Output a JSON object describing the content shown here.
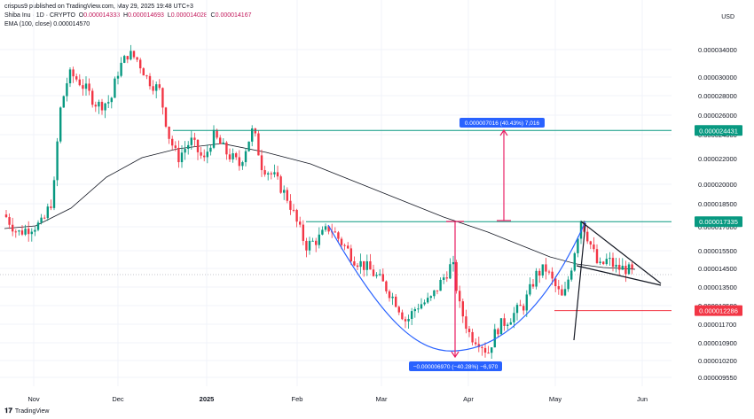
{
  "header": {
    "published": "crispus9 published on TradingView.com, May 29, 2025 19:48 UTC+3",
    "symbol": "Shiba Inu · 1D · CRYPTO",
    "o_label": "O",
    "o_value": "0.000014333",
    "h_label": "H",
    "h_value": "0.000014693",
    "l_label": "L",
    "l_value": "0.000014028",
    "c_label": "C",
    "c_value": "0.000014167",
    "ema_label": "EMA (100, close)",
    "ema_value": "0.000014570"
  },
  "currency": "USD",
  "footer": {
    "logo_text": "TradingView"
  },
  "chart_data": {
    "type": "candlestick",
    "x_ticks": [
      "Nov",
      "Dec",
      "2025",
      "Feb",
      "Mar",
      "Apr",
      "May",
      "Jun"
    ],
    "y_ticks": [
      "0.000034000",
      "0.000030000",
      "0.000028000",
      "0.000026000",
      "0.000024000",
      "0.000022000",
      "0.000020000",
      "0.000018500",
      "0.000017000",
      "0.000015500",
      "0.000014500",
      "0.000013500",
      "0.000012500",
      "0.000011700",
      "0.000010900",
      "0.000010200",
      "0.000009550"
    ],
    "price_badges": [
      {
        "label": "0.000024431",
        "value": 2.4431e-05,
        "color": "#089981"
      },
      {
        "label": "0.000017335",
        "value": 1.7335e-05,
        "color": "#089981"
      },
      {
        "label": "0.000012286",
        "value": 1.2286e-05,
        "color": "#f23645"
      }
    ],
    "current_price": 1.4167e-05,
    "annotations": [
      {
        "text": "0.000007016 (40.43%) 7,016",
        "color": "#2962ff"
      },
      {
        "text": "−0.000006970 (−40.28%) −6,970",
        "color": "#2962ff"
      }
    ],
    "ema_series_name": "EMA (100, close)",
    "colors": {
      "up": "#089981",
      "down": "#f23645",
      "ema": "#131722",
      "cup": "#2962ff",
      "measure": "#e91e63"
    }
  }
}
